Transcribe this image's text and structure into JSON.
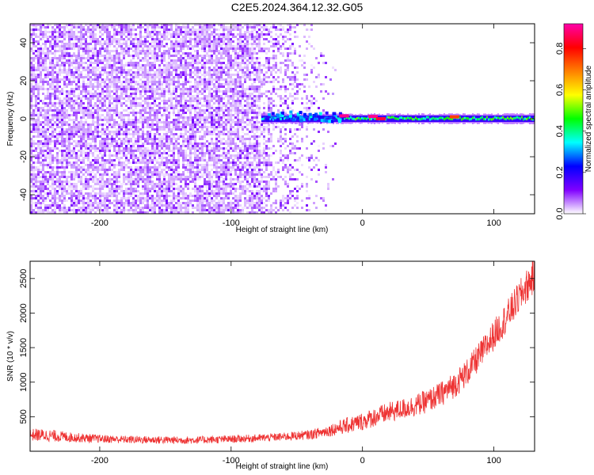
{
  "title": "C2E5.2024.364.12.32.G05",
  "colorbar": {
    "label": "Normalized spectral amplitude",
    "ticks": [
      "0.0",
      "0.2",
      "0.4",
      "0.6",
      "0.8"
    ],
    "tick_values": [
      0.0,
      0.2,
      0.4,
      0.6,
      0.8
    ],
    "range": [
      0,
      0.92
    ],
    "colormap": [
      "#ffffff",
      "#8000ff",
      "#0000ff",
      "#00ffff",
      "#00ff00",
      "#ffff00",
      "#ff8000",
      "#ff0000",
      "#ff00aa"
    ]
  },
  "chart_data": [
    {
      "type": "heatmap",
      "xlabel": "Height of straight line (km)",
      "ylabel": "Frequency (Hz)",
      "xlim": [
        -253,
        131
      ],
      "ylim": [
        -50,
        50
      ],
      "xticks": [
        -200,
        -100,
        0,
        100
      ],
      "xtick_labels": [
        "-200",
        "-100",
        "0",
        "100"
      ],
      "yticks": [
        -40,
        -20,
        0,
        20,
        40
      ],
      "ytick_labels": [
        "-40",
        "-20",
        "0",
        "20",
        "40"
      ],
      "description_of_structure": {
        "noise_region_x": [
          -253,
          -17
        ],
        "dense_noise_region_x": [
          -253,
          -78
        ],
        "signal_band_frequency_hz": 0,
        "signal_start_x": -77,
        "peak_points": [
          {
            "x": -14,
            "y": 1.5,
            "value": 0.9
          },
          {
            "x": 8,
            "y": 1.2,
            "value": 0.9
          },
          {
            "x": 14,
            "y": 0.0,
            "value": 0.85
          },
          {
            "x": 70,
            "y": 1.0,
            "value": 0.75
          }
        ]
      }
    },
    {
      "type": "line",
      "xlabel": "Height of straight line (km)",
      "ylabel": "SNR (10 * v/v)",
      "xlim": [
        -253,
        131
      ],
      "ylim": [
        0,
        2750
      ],
      "xticks": [
        -200,
        -100,
        0,
        100
      ],
      "xtick_labels": [
        "-200",
        "-100",
        "0",
        "100"
      ],
      "yticks": [
        500,
        1000,
        1500,
        2000,
        2500
      ],
      "ytick_labels": [
        "500",
        "1000",
        "1500",
        "2000",
        "2500"
      ],
      "color": "#ee3333",
      "series": [
        {
          "x": [
            -253,
            -240,
            -220,
            -200,
            -180,
            -160,
            -140,
            -120,
            -100,
            -80,
            -60,
            -40,
            -30,
            -20,
            -10,
            0,
            10,
            20,
            30,
            40,
            50,
            60,
            70,
            80,
            90,
            100,
            110,
            120,
            131
          ],
          "y": [
            240,
            230,
            200,
            180,
            170,
            165,
            160,
            165,
            175,
            190,
            210,
            240,
            280,
            330,
            380,
            430,
            500,
            560,
            610,
            660,
            730,
            830,
            960,
            1150,
            1400,
            1680,
            1950,
            2250,
            2550
          ],
          "noise_amplitude": [
            90,
            90,
            70,
            60,
            55,
            55,
            55,
            55,
            55,
            55,
            60,
            70,
            80,
            100,
            120,
            130,
            140,
            150,
            150,
            160,
            170,
            180,
            190,
            200,
            210,
            220,
            230,
            240,
            260
          ]
        }
      ]
    }
  ]
}
